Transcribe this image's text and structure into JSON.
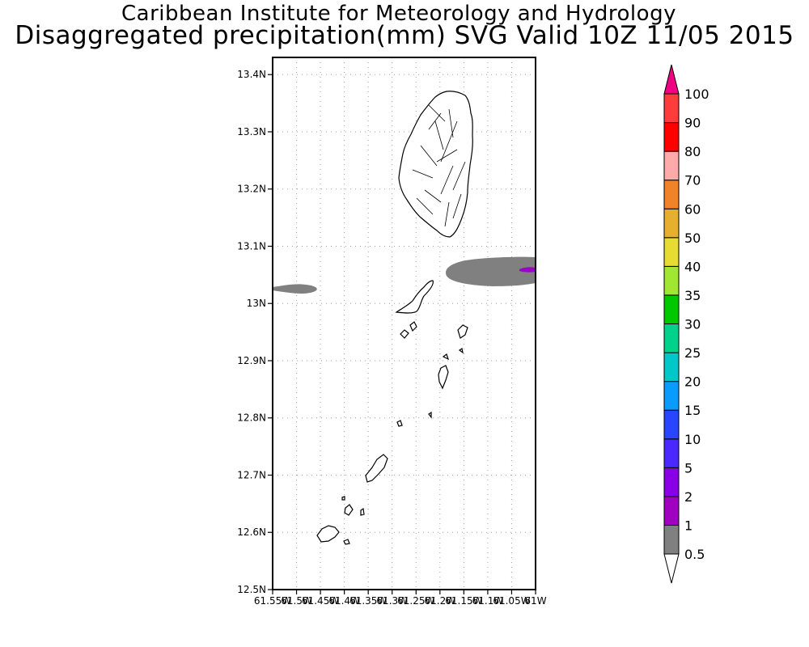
{
  "header": {
    "title": "Caribbean Institute for Meteorology and Hydrology",
    "subtitle": "Disaggregated precipitation(mm) SVG Valid 10Z 11/05 2015"
  },
  "map": {
    "lon_range": [
      -61.55,
      -61.0
    ],
    "lat_range": [
      12.5,
      13.43
    ],
    "lat_ticks": [
      {
        "value": 13.4,
        "label": "13.4N"
      },
      {
        "value": 13.3,
        "label": "13.3N"
      },
      {
        "value": 13.2,
        "label": "13.2N"
      },
      {
        "value": 13.1,
        "label": "13.1N"
      },
      {
        "value": 13.0,
        "label": "13N"
      },
      {
        "value": 12.9,
        "label": "12.9N"
      },
      {
        "value": 12.8,
        "label": "12.8N"
      },
      {
        "value": 12.7,
        "label": "12.7N"
      },
      {
        "value": 12.6,
        "label": "12.6N"
      },
      {
        "value": 12.5,
        "label": "12.5N"
      }
    ],
    "lon_ticks": [
      {
        "value": -61.55,
        "label": "61.55W"
      },
      {
        "value": -61.5,
        "label": "61.5W"
      },
      {
        "value": -61.45,
        "label": "61.45W"
      },
      {
        "value": -61.4,
        "label": "61.4W"
      },
      {
        "value": -61.35,
        "label": "61.35W"
      },
      {
        "value": -61.3,
        "label": "61.3W"
      },
      {
        "value": -61.25,
        "label": "61.25W"
      },
      {
        "value": -61.2,
        "label": "61.2W"
      },
      {
        "value": -61.15,
        "label": "61.15W"
      },
      {
        "value": -61.1,
        "label": "61.1W"
      },
      {
        "value": -61.05,
        "label": "61.05W"
      },
      {
        "value": -61.0,
        "label": "61W"
      }
    ],
    "grid": true,
    "land_outline_color": "#000000",
    "precip_areas": [
      {
        "name": "precip-area-west",
        "class": "0.5-1",
        "color": "#808080"
      },
      {
        "name": "precip-area-east",
        "class": "0.5-1",
        "color": "#808080"
      },
      {
        "name": "precip-area-east-core",
        "class": "1-2",
        "color": "#9a00c8"
      }
    ]
  },
  "colorbar": {
    "levels": [
      {
        "label": "0.5",
        "color": "#808080"
      },
      {
        "label": "1",
        "color": "#a000c0"
      },
      {
        "label": "2",
        "color": "#8a00e6"
      },
      {
        "label": "5",
        "color": "#4b28ff"
      },
      {
        "label": "10",
        "color": "#2846ff"
      },
      {
        "label": "15",
        "color": "#0a9bff"
      },
      {
        "label": "20",
        "color": "#00c8c8"
      },
      {
        "label": "25",
        "color": "#00d28c"
      },
      {
        "label": "30",
        "color": "#00c800"
      },
      {
        "label": "35",
        "color": "#a0e632"
      },
      {
        "label": "40",
        "color": "#e6dc32"
      },
      {
        "label": "50",
        "color": "#e6af2d"
      },
      {
        "label": "60",
        "color": "#f08228"
      },
      {
        "label": "70",
        "color": "#ffaaaa"
      },
      {
        "label": "80",
        "color": "#ff0000"
      },
      {
        "label": "90",
        "color": "#ff3c3c"
      },
      {
        "label": "100",
        "color": "#f00082"
      }
    ]
  }
}
